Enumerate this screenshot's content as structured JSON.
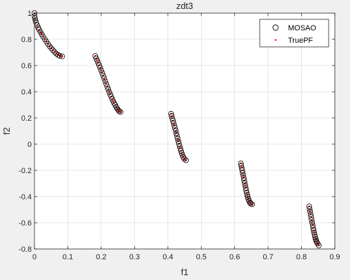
{
  "chart_data": {
    "type": "scatter",
    "title": "zdt3",
    "xlabel": "f1",
    "ylabel": "f2",
    "xlim": [
      0,
      0.9
    ],
    "ylim": [
      -0.8,
      1
    ],
    "x_ticks": [
      0,
      0.1,
      0.2,
      0.3,
      0.4,
      0.5,
      0.6,
      0.7,
      0.8,
      0.9
    ],
    "y_ticks": [
      -0.8,
      -0.6,
      -0.4,
      -0.2,
      0,
      0.2,
      0.4,
      0.6,
      0.8,
      1
    ],
    "x_tick_labels": [
      "0",
      "0.1",
      "0.2",
      "0.3",
      "0.4",
      "0.5",
      "0.6",
      "0.7",
      "0.8",
      "0.9"
    ],
    "y_tick_labels": [
      "-0.8",
      "-0.6",
      "-0.4",
      "-0.2",
      "0",
      "0.2",
      "0.4",
      "0.6",
      "0.8",
      "1"
    ],
    "grid": true,
    "legend_position": "top-right",
    "legend": [
      {
        "label": "MOSAO",
        "marker": "circle-open",
        "color": "#000000"
      },
      {
        "label": "TruePF",
        "marker": "dot",
        "color": "#ff0000"
      }
    ],
    "front_segments": [
      [
        0,
        0.083
      ],
      [
        0.1822,
        0.2578
      ],
      [
        0.4093,
        0.4539
      ],
      [
        0.6184,
        0.6525
      ],
      [
        0.8233,
        0.8518
      ]
    ],
    "series": [
      {
        "name": "MOSAO",
        "points": [
          [
            0.0,
            1.0
          ],
          [
            0.0005,
            0.978
          ],
          [
            0.0015,
            0.961
          ],
          [
            0.003,
            0.945
          ],
          [
            0.005,
            0.928
          ],
          [
            0.008,
            0.908
          ],
          [
            0.011,
            0.891
          ],
          [
            0.014,
            0.874
          ],
          [
            0.018,
            0.856
          ],
          [
            0.022,
            0.838
          ],
          [
            0.026,
            0.82
          ],
          [
            0.031,
            0.8
          ],
          [
            0.036,
            0.782
          ],
          [
            0.041,
            0.763
          ],
          [
            0.046,
            0.746
          ],
          [
            0.051,
            0.73
          ],
          [
            0.056,
            0.715
          ],
          [
            0.061,
            0.702
          ],
          [
            0.066,
            0.69
          ],
          [
            0.071,
            0.68
          ],
          [
            0.076,
            0.674
          ],
          [
            0.083,
            0.67
          ],
          [
            0.1822,
            0.673
          ],
          [
            0.185,
            0.655
          ],
          [
            0.188,
            0.638
          ],
          [
            0.191,
            0.62
          ],
          [
            0.194,
            0.602
          ],
          [
            0.197,
            0.583
          ],
          [
            0.2,
            0.563
          ],
          [
            0.203,
            0.543
          ],
          [
            0.206,
            0.522
          ],
          [
            0.209,
            0.502
          ],
          [
            0.212,
            0.481
          ],
          [
            0.215,
            0.46
          ],
          [
            0.218,
            0.439
          ],
          [
            0.221,
            0.419
          ],
          [
            0.224,
            0.399
          ],
          [
            0.227,
            0.38
          ],
          [
            0.23,
            0.362
          ],
          [
            0.233,
            0.344
          ],
          [
            0.236,
            0.328
          ],
          [
            0.239,
            0.312
          ],
          [
            0.242,
            0.298
          ],
          [
            0.245,
            0.284
          ],
          [
            0.248,
            0.271
          ],
          [
            0.251,
            0.26
          ],
          [
            0.254,
            0.251
          ],
          [
            0.2578,
            0.245
          ],
          [
            0.4093,
            0.232
          ],
          [
            0.411,
            0.215
          ],
          [
            0.413,
            0.197
          ],
          [
            0.415,
            0.179
          ],
          [
            0.417,
            0.16
          ],
          [
            0.419,
            0.141
          ],
          [
            0.421,
            0.122
          ],
          [
            0.423,
            0.102
          ],
          [
            0.425,
            0.082
          ],
          [
            0.427,
            0.062
          ],
          [
            0.429,
            0.042
          ],
          [
            0.431,
            0.022
          ],
          [
            0.433,
            0.003
          ],
          [
            0.435,
            -0.016
          ],
          [
            0.437,
            -0.034
          ],
          [
            0.439,
            -0.051
          ],
          [
            0.441,
            -0.067
          ],
          [
            0.443,
            -0.082
          ],
          [
            0.446,
            -0.099
          ],
          [
            0.449,
            -0.112
          ],
          [
            0.4539,
            -0.123
          ],
          [
            0.6184,
            -0.146
          ],
          [
            0.6195,
            -0.164
          ],
          [
            0.621,
            -0.182
          ],
          [
            0.6225,
            -0.2
          ],
          [
            0.624,
            -0.219
          ],
          [
            0.6255,
            -0.238
          ],
          [
            0.627,
            -0.258
          ],
          [
            0.6285,
            -0.277
          ],
          [
            0.63,
            -0.297
          ],
          [
            0.6315,
            -0.316
          ],
          [
            0.633,
            -0.336
          ],
          [
            0.6345,
            -0.354
          ],
          [
            0.636,
            -0.372
          ],
          [
            0.6375,
            -0.389
          ],
          [
            0.639,
            -0.405
          ],
          [
            0.641,
            -0.42
          ],
          [
            0.643,
            -0.433
          ],
          [
            0.6455,
            -0.446
          ],
          [
            0.648,
            -0.454
          ],
          [
            0.6525,
            -0.459
          ],
          [
            0.8233,
            -0.475
          ],
          [
            0.8245,
            -0.495
          ],
          [
            0.826,
            -0.515
          ],
          [
            0.8275,
            -0.536
          ],
          [
            0.829,
            -0.557
          ],
          [
            0.8305,
            -0.578
          ],
          [
            0.832,
            -0.599
          ],
          [
            0.8335,
            -0.619
          ],
          [
            0.835,
            -0.639
          ],
          [
            0.8365,
            -0.658
          ],
          [
            0.838,
            -0.676
          ],
          [
            0.8395,
            -0.693
          ],
          [
            0.841,
            -0.709
          ],
          [
            0.8425,
            -0.723
          ],
          [
            0.844,
            -0.736
          ],
          [
            0.846,
            -0.748
          ],
          [
            0.848,
            -0.758
          ],
          [
            0.8518,
            -0.773
          ]
        ]
      },
      {
        "name": "TruePF",
        "points": [
          [
            0.0,
            1.0
          ],
          [
            0.002,
            0.956
          ],
          [
            0.005,
            0.928
          ],
          [
            0.01,
            0.896
          ],
          [
            0.015,
            0.868
          ],
          [
            0.02,
            0.847
          ],
          [
            0.025,
            0.825
          ],
          [
            0.03,
            0.804
          ],
          [
            0.035,
            0.785
          ],
          [
            0.04,
            0.767
          ],
          [
            0.045,
            0.749
          ],
          [
            0.05,
            0.733
          ],
          [
            0.055,
            0.718
          ],
          [
            0.06,
            0.705
          ],
          [
            0.065,
            0.693
          ],
          [
            0.07,
            0.683
          ],
          [
            0.075,
            0.676
          ],
          [
            0.08,
            0.672
          ],
          [
            0.083,
            0.671
          ],
          [
            0.1822,
            0.673
          ],
          [
            0.186,
            0.65
          ],
          [
            0.19,
            0.626
          ],
          [
            0.194,
            0.602
          ],
          [
            0.198,
            0.576
          ],
          [
            0.202,
            0.549
          ],
          [
            0.206,
            0.522
          ],
          [
            0.21,
            0.495
          ],
          [
            0.214,
            0.467
          ],
          [
            0.218,
            0.439
          ],
          [
            0.222,
            0.412
          ],
          [
            0.226,
            0.386
          ],
          [
            0.23,
            0.362
          ],
          [
            0.234,
            0.339
          ],
          [
            0.238,
            0.318
          ],
          [
            0.242,
            0.298
          ],
          [
            0.246,
            0.28
          ],
          [
            0.25,
            0.264
          ],
          [
            0.254,
            0.251
          ],
          [
            0.2578,
            0.245
          ],
          [
            0.4093,
            0.232
          ],
          [
            0.412,
            0.207
          ],
          [
            0.415,
            0.179
          ],
          [
            0.418,
            0.15
          ],
          [
            0.421,
            0.122
          ],
          [
            0.424,
            0.092
          ],
          [
            0.427,
            0.062
          ],
          [
            0.43,
            0.032
          ],
          [
            0.433,
            0.003
          ],
          [
            0.436,
            -0.025
          ],
          [
            0.439,
            -0.051
          ],
          [
            0.442,
            -0.075
          ],
          [
            0.445,
            -0.094
          ],
          [
            0.448,
            -0.108
          ],
          [
            0.451,
            -0.118
          ],
          [
            0.4539,
            -0.123
          ],
          [
            0.6184,
            -0.146
          ],
          [
            0.6205,
            -0.176
          ],
          [
            0.6225,
            -0.2
          ],
          [
            0.6245,
            -0.225
          ],
          [
            0.6265,
            -0.251
          ],
          [
            0.6285,
            -0.277
          ],
          [
            0.6305,
            -0.303
          ],
          [
            0.6325,
            -0.329
          ],
          [
            0.6345,
            -0.354
          ],
          [
            0.6365,
            -0.378
          ],
          [
            0.6385,
            -0.4
          ],
          [
            0.6405,
            -0.417
          ],
          [
            0.643,
            -0.433
          ],
          [
            0.646,
            -0.447
          ],
          [
            0.649,
            -0.455
          ],
          [
            0.6525,
            -0.459
          ],
          [
            0.8233,
            -0.475
          ],
          [
            0.825,
            -0.502
          ],
          [
            0.827,
            -0.529
          ],
          [
            0.829,
            -0.557
          ],
          [
            0.831,
            -0.585
          ],
          [
            0.833,
            -0.612
          ],
          [
            0.835,
            -0.639
          ],
          [
            0.837,
            -0.664
          ],
          [
            0.839,
            -0.687
          ],
          [
            0.841,
            -0.709
          ],
          [
            0.843,
            -0.727
          ],
          [
            0.845,
            -0.742
          ],
          [
            0.847,
            -0.753
          ],
          [
            0.849,
            -0.762
          ],
          [
            0.8518,
            -0.773
          ]
        ]
      }
    ]
  }
}
